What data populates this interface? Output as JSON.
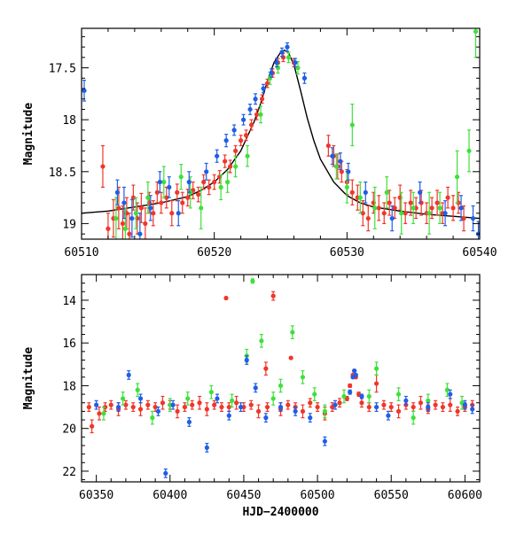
{
  "colors": {
    "red": "#f0362a",
    "green": "#3ee03a",
    "blue": "#1f5ee6",
    "model": "#000000",
    "axis": "#000000"
  },
  "chart_data": [
    {
      "type": "scatter",
      "title": "",
      "xlabel": "",
      "ylabel": "Magnitude",
      "xlim": [
        60510,
        60540
      ],
      "ylim": [
        19.15,
        17.12
      ],
      "y_inverted": true,
      "grid": false,
      "x_ticks": [
        60510,
        60520,
        60530,
        60540
      ],
      "x_tick_labels": [
        "60510",
        "60520",
        "60530",
        "60540"
      ],
      "y_ticks": [
        17.5,
        18,
        18.5,
        19
      ],
      "y_tick_labels": [
        "17.5",
        "18",
        "18.5",
        "19"
      ],
      "model_curve": {
        "color": "#000000",
        "x": [
          60510,
          60512,
          60514,
          60516,
          60518,
          60519,
          60520,
          60521,
          60522,
          60523,
          60523.5,
          60524,
          60524.5,
          60525,
          60525.3,
          60525.6,
          60526,
          60526.5,
          60527,
          60527.5,
          60528,
          60529,
          60530,
          60531,
          60532,
          60534,
          60536,
          60538,
          60540
        ],
        "y": [
          18.9,
          18.88,
          18.84,
          18.8,
          18.74,
          18.68,
          18.6,
          18.48,
          18.3,
          18.02,
          17.84,
          17.63,
          17.45,
          17.35,
          17.33,
          17.36,
          17.47,
          17.72,
          17.98,
          18.2,
          18.38,
          18.6,
          18.73,
          18.8,
          18.84,
          18.88,
          18.91,
          18.93,
          18.95
        ]
      },
      "series": [
        {
          "color": "#f0362a",
          "x": [
            60511.6,
            60512.0,
            60512.4,
            60512.8,
            60513.1,
            60513.4,
            60513.6,
            60513.9,
            60514.2,
            60514.5,
            60514.8,
            60515.1,
            60515.4,
            60515.7,
            60516.0,
            60516.4,
            60516.8,
            60517.2,
            60517.6,
            60518.0,
            60518.4,
            60518.8,
            60519.2,
            60519.6,
            60520.0,
            60520.4,
            60520.8,
            60521.2,
            60521.6,
            60522.0,
            60522.4,
            60522.8,
            60523.2,
            60523.6,
            60524.0,
            60524.4,
            60524.8,
            60525.2,
            60526.0,
            60528.6,
            60529.0,
            60529.3,
            60529.6,
            60530.0,
            60530.4,
            60530.8,
            60531.2,
            60531.6,
            60532.0,
            60532.4,
            60532.8,
            60533.2,
            60533.6,
            60534.0,
            60534.4,
            60534.8,
            60535.2,
            60535.6,
            60536.0,
            60536.4,
            60536.8,
            60537.2,
            60537.6,
            60538.0,
            60538.4,
            60538.8
          ],
          "y": [
            18.45,
            19.05,
            18.95,
            18.85,
            19.0,
            18.9,
            19.1,
            18.75,
            18.95,
            18.85,
            19.0,
            18.8,
            18.9,
            18.7,
            18.8,
            18.75,
            18.9,
            18.7,
            18.8,
            18.75,
            18.68,
            18.72,
            18.6,
            18.65,
            18.6,
            18.55,
            18.4,
            18.45,
            18.3,
            18.2,
            18.15,
            18.05,
            17.95,
            17.8,
            17.65,
            17.55,
            17.45,
            17.4,
            17.45,
            18.25,
            18.35,
            18.45,
            18.5,
            18.6,
            18.7,
            18.75,
            18.9,
            18.95,
            18.8,
            18.85,
            18.9,
            18.8,
            18.85,
            18.75,
            18.9,
            18.8,
            18.85,
            18.8,
            18.9,
            18.85,
            18.8,
            18.9,
            18.75,
            18.85,
            18.8,
            18.95
          ],
          "err": [
            0.2,
            0.15,
            0.18,
            0.2,
            0.17,
            0.15,
            0.2,
            0.12,
            0.15,
            0.14,
            0.15,
            0.1,
            0.12,
            0.1,
            0.1,
            0.1,
            0.12,
            0.08,
            0.1,
            0.08,
            0.08,
            0.07,
            0.07,
            0.07,
            0.07,
            0.06,
            0.06,
            0.06,
            0.05,
            0.05,
            0.05,
            0.05,
            0.05,
            0.04,
            0.04,
            0.04,
            0.04,
            0.04,
            0.04,
            0.1,
            0.1,
            0.12,
            0.1,
            0.12,
            0.12,
            0.12,
            0.12,
            0.12,
            0.1,
            0.12,
            0.1,
            0.12,
            0.1,
            0.12,
            0.1,
            0.12,
            0.1,
            0.12,
            0.1,
            0.1,
            0.12,
            0.1,
            0.1,
            0.12,
            0.1,
            0.12
          ]
        },
        {
          "color": "#3ee03a",
          "x": [
            60512.6,
            60513.3,
            60514.1,
            60515.0,
            60516.2,
            60517.5,
            60518.2,
            60519.0,
            60520.5,
            60521.0,
            60521.6,
            60522.5,
            60523.5,
            60524.2,
            60524.8,
            60525.6,
            60526.3,
            60529.2,
            60530.0,
            60530.4,
            60531.0,
            60532.1,
            60533.0,
            60534.1,
            60535.0,
            60536.2,
            60537.0,
            60538.3,
            60539.2,
            60539.7
          ],
          "y": [
            18.95,
            19.05,
            18.9,
            18.75,
            18.6,
            18.55,
            18.7,
            18.85,
            18.65,
            18.6,
            18.45,
            18.35,
            17.95,
            17.6,
            17.5,
            17.4,
            17.5,
            18.45,
            18.65,
            18.05,
            18.75,
            18.85,
            18.7,
            18.9,
            18.85,
            18.9,
            18.85,
            18.55,
            18.3,
            17.15
          ],
          "err": [
            0.2,
            0.2,
            0.15,
            0.15,
            0.15,
            0.12,
            0.15,
            0.2,
            0.12,
            0.1,
            0.1,
            0.1,
            0.08,
            0.06,
            0.05,
            0.05,
            0.06,
            0.12,
            0.15,
            0.2,
            0.15,
            0.2,
            0.15,
            0.2,
            0.15,
            0.2,
            0.15,
            0.25,
            0.2,
            0.25
          ]
        },
        {
          "color": "#1f5ee6",
          "x": [
            60510.2,
            60512.7,
            60513.2,
            60513.8,
            60514.4,
            60515.2,
            60515.9,
            60516.6,
            60517.3,
            60518.1,
            60519.4,
            60520.2,
            60520.9,
            60521.5,
            60522.2,
            60522.7,
            60523.1,
            60523.7,
            60524.3,
            60524.7,
            60525.1,
            60525.5,
            60526.1,
            60526.8,
            60528.9,
            60529.5,
            60530.1,
            60531.4,
            60533.4,
            60535.5,
            60537.4,
            60538.6,
            60539.5,
            60539.9
          ],
          "y": [
            17.72,
            18.7,
            18.8,
            18.95,
            19.1,
            18.85,
            18.6,
            18.65,
            18.9,
            18.6,
            18.5,
            18.35,
            18.2,
            18.1,
            18.0,
            17.9,
            17.8,
            17.7,
            17.55,
            17.45,
            17.35,
            17.3,
            17.45,
            17.6,
            18.35,
            18.4,
            18.5,
            18.7,
            18.95,
            18.7,
            18.9,
            18.85,
            18.95,
            19.1
          ],
          "err": [
            0.1,
            0.12,
            0.15,
            0.18,
            0.2,
            0.12,
            0.1,
            0.1,
            0.12,
            0.1,
            0.08,
            0.06,
            0.06,
            0.05,
            0.05,
            0.05,
            0.05,
            0.04,
            0.04,
            0.04,
            0.04,
            0.04,
            0.04,
            0.05,
            0.08,
            0.08,
            0.08,
            0.1,
            0.12,
            0.1,
            0.12,
            0.12,
            0.12,
            0.12
          ]
        }
      ]
    },
    {
      "type": "scatter",
      "title": "",
      "xlabel": "HJD−2400000",
      "ylabel": "Magnitude",
      "xlim": [
        60340,
        60610
      ],
      "ylim": [
        22.5,
        12.8
      ],
      "y_inverted": true,
      "grid": false,
      "x_ticks": [
        60350,
        60400,
        60450,
        60500,
        60550,
        60600
      ],
      "x_tick_labels": [
        "60350",
        "60400",
        "60450",
        "60500",
        "60550",
        "60600"
      ],
      "y_ticks": [
        14,
        16,
        18,
        20,
        22
      ],
      "y_tick_labels": [
        "14",
        "16",
        "18",
        "20",
        "22"
      ],
      "series": [
        {
          "color": "#f0362a",
          "x": [
            60345,
            60347,
            60352,
            60356,
            60360,
            60365,
            60370,
            60375,
            60380,
            60385,
            60390,
            60395,
            60400,
            60405,
            60410,
            60415,
            60420,
            60425,
            60430,
            60435,
            60438,
            60440,
            60445,
            60450,
            60455,
            60460,
            60465,
            60466,
            60470,
            60475,
            60480,
            60482,
            60485,
            60490,
            60495,
            60500,
            60505,
            60510,
            60515,
            60520,
            60522,
            60524,
            60525,
            60526,
            60528,
            60530,
            60535,
            60540,
            60545,
            60550,
            60555,
            60560,
            60565,
            60570,
            60575,
            60580,
            60585,
            60590,
            60595,
            60600,
            60605
          ],
          "y": [
            19.0,
            19.9,
            19.3,
            19.0,
            18.9,
            19.1,
            18.9,
            19.0,
            19.1,
            18.9,
            19.0,
            18.8,
            18.9,
            19.2,
            19.0,
            18.9,
            18.8,
            19.1,
            18.9,
            19.0,
            13.9,
            19.0,
            18.8,
            19.0,
            18.9,
            19.2,
            17.2,
            19.0,
            13.8,
            19.1,
            18.9,
            16.7,
            19.0,
            19.2,
            18.8,
            19.0,
            19.3,
            19.0,
            18.8,
            18.6,
            18.0,
            17.5,
            17.3,
            17.6,
            18.4,
            18.8,
            19.0,
            17.9,
            18.9,
            19.0,
            19.2,
            18.9,
            19.0,
            18.8,
            19.1,
            18.9,
            19.0,
            18.9,
            19.2,
            19.0,
            18.9
          ],
          "err": [
            0.2,
            0.3,
            0.3,
            0.2,
            0.2,
            0.3,
            0.2,
            0.2,
            0.3,
            0.2,
            0.2,
            0.3,
            0.2,
            0.3,
            0.2,
            0.2,
            0.3,
            0.3,
            0.2,
            0.2,
            0.05,
            0.2,
            0.3,
            0.2,
            0.2,
            0.3,
            0.3,
            0.2,
            0.2,
            0.3,
            0.2,
            0.05,
            0.2,
            0.3,
            0.2,
            0.2,
            0.3,
            0.2,
            0.2,
            0.1,
            0.08,
            0.05,
            0.05,
            0.05,
            0.1,
            0.2,
            0.2,
            0.4,
            0.2,
            0.2,
            0.3,
            0.2,
            0.2,
            0.3,
            0.2,
            0.2,
            0.2,
            0.3,
            0.2,
            0.2,
            0.2
          ]
        },
        {
          "color": "#3ee03a",
          "x": [
            60355,
            60368,
            60378,
            60388,
            60400,
            60412,
            60428,
            60442,
            60452,
            60456,
            60462,
            60470,
            60475,
            60483,
            60490,
            60498,
            60505,
            60518,
            60535,
            60540,
            60555,
            60565,
            60575,
            60588,
            60598
          ],
          "y": [
            19.3,
            18.6,
            18.2,
            19.5,
            18.9,
            18.6,
            18.3,
            18.7,
            16.6,
            13.1,
            15.9,
            18.6,
            18.0,
            15.5,
            17.6,
            18.4,
            19.2,
            18.5,
            18.5,
            17.2,
            18.4,
            19.5,
            18.7,
            18.2,
            18.8
          ],
          "err": [
            0.3,
            0.3,
            0.3,
            0.3,
            0.3,
            0.3,
            0.3,
            0.3,
            0.3,
            0.1,
            0.3,
            0.3,
            0.3,
            0.3,
            0.3,
            0.3,
            0.3,
            0.3,
            0.3,
            0.3,
            0.3,
            0.3,
            0.3,
            0.3,
            0.3
          ]
        },
        {
          "color": "#1f5ee6",
          "x": [
            60350,
            60365,
            60372,
            60380,
            60392,
            60397,
            60402,
            60413,
            60425,
            60432,
            60440,
            60448,
            60452,
            60458,
            60465,
            60475,
            60485,
            60495,
            60505,
            60512,
            60522,
            60524,
            60525,
            60526,
            60530,
            60540,
            60548,
            60560,
            60575,
            60590,
            60600,
            60605
          ],
          "y": [
            18.9,
            19.0,
            17.5,
            18.6,
            19.2,
            22.1,
            18.9,
            19.7,
            20.9,
            18.6,
            19.4,
            19.0,
            16.8,
            18.1,
            19.5,
            19.0,
            19.2,
            19.5,
            20.6,
            18.9,
            18.3,
            17.6,
            17.3,
            17.5,
            18.5,
            19.0,
            19.4,
            18.7,
            19.0,
            18.4,
            18.9,
            19.1
          ],
          "err": [
            0.2,
            0.2,
            0.2,
            0.2,
            0.2,
            0.2,
            0.2,
            0.2,
            0.2,
            0.2,
            0.2,
            0.2,
            0.2,
            0.2,
            0.2,
            0.2,
            0.2,
            0.2,
            0.2,
            0.2,
            0.1,
            0.05,
            0.05,
            0.05,
            0.1,
            0.2,
            0.2,
            0.2,
            0.2,
            0.2,
            0.2,
            0.2
          ]
        }
      ]
    }
  ]
}
